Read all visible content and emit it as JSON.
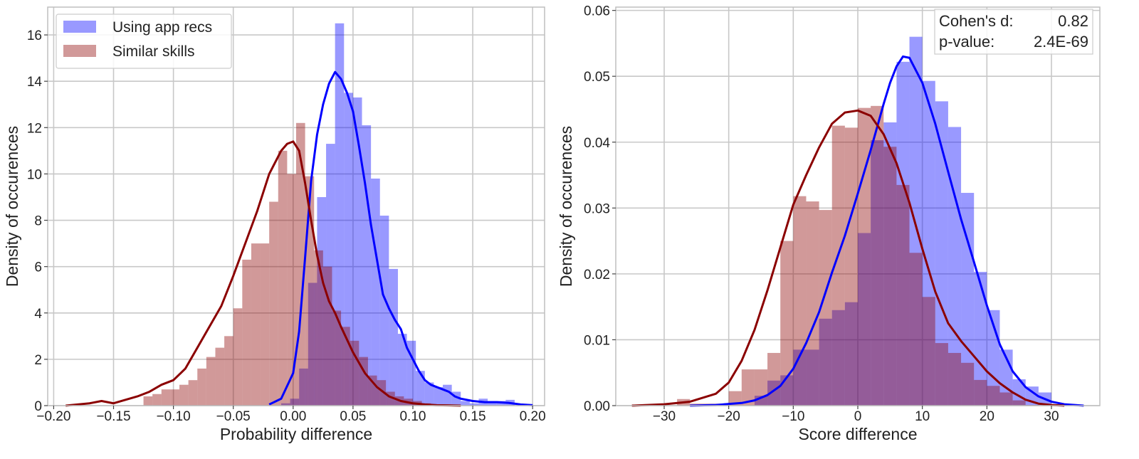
{
  "chart_data": [
    {
      "type": "histogram+kde",
      "xlabel": "Probability difference",
      "ylabel": "Density of occurences",
      "xlim": [
        -0.205,
        0.21
      ],
      "ylim": [
        0,
        17.2
      ],
      "xticks": [
        -0.2,
        -0.15,
        -0.1,
        -0.05,
        0.0,
        0.05,
        0.1,
        0.15,
        0.2
      ],
      "xtick_labels": [
        "−0.20",
        "−0.15",
        "−0.10",
        "−0.05",
        "0.00",
        "0.05",
        "0.10",
        "0.15",
        "0.20"
      ],
      "yticks": [
        0,
        2,
        4,
        6,
        8,
        10,
        12,
        14,
        16
      ],
      "ytick_labels": [
        "0",
        "2",
        "4",
        "6",
        "8",
        "10",
        "12",
        "14",
        "16"
      ],
      "grid": true,
      "legend": {
        "position": "top-left",
        "entries": [
          "Using app recs",
          "Similar skills"
        ]
      },
      "series": [
        {
          "name": "Using app recs",
          "color": "#0000ff",
          "hist_alpha": 0.4,
          "bin_width": 0.0075,
          "bins": [
            [
              -0.01,
              0.1
            ],
            [
              -0.0025,
              0.3
            ],
            [
              0.005,
              1.6
            ],
            [
              0.0125,
              5.3
            ],
            [
              0.02,
              9.0
            ],
            [
              0.0275,
              11.3
            ],
            [
              0.035,
              16.5
            ],
            [
              0.0425,
              13.5
            ],
            [
              0.05,
              13.3
            ],
            [
              0.0575,
              12.1
            ],
            [
              0.065,
              9.8
            ],
            [
              0.0725,
              8.2
            ],
            [
              0.08,
              5.9
            ],
            [
              0.0875,
              3.1
            ],
            [
              0.095,
              2.8
            ],
            [
              0.1025,
              1.5
            ],
            [
              0.11,
              1.0
            ],
            [
              0.1175,
              0.8
            ],
            [
              0.125,
              0.9
            ],
            [
              0.1325,
              0.6
            ],
            [
              0.14,
              0.2
            ],
            [
              0.1475,
              0.1
            ],
            [
              0.155,
              0.3
            ],
            [
              0.1625,
              0.2
            ],
            [
              0.17,
              0.2
            ],
            [
              0.1775,
              0.25
            ]
          ],
          "kde_x": [
            -0.02,
            -0.01,
            0.0,
            0.005,
            0.01,
            0.015,
            0.02,
            0.025,
            0.03,
            0.035,
            0.04,
            0.045,
            0.05,
            0.055,
            0.06,
            0.065,
            0.07,
            0.075,
            0.08,
            0.085,
            0.09,
            0.095,
            0.1,
            0.105,
            0.11,
            0.115,
            0.12,
            0.125,
            0.13,
            0.135,
            0.14,
            0.15,
            0.16,
            0.17,
            0.18,
            0.19,
            0.2
          ],
          "kde_y": [
            0.05,
            0.3,
            1.4,
            3.2,
            6.4,
            9.7,
            11.7,
            13.0,
            13.9,
            14.4,
            14.1,
            13.5,
            12.7,
            11.2,
            9.6,
            7.8,
            6.3,
            4.8,
            4.2,
            3.7,
            3.3,
            2.5,
            2.0,
            1.5,
            1.1,
            0.9,
            0.8,
            0.7,
            0.6,
            0.4,
            0.3,
            0.2,
            0.15,
            0.15,
            0.12,
            0.05,
            0.02
          ]
        },
        {
          "name": "Similar skills",
          "color": "#8b0000",
          "hist_alpha": 0.4,
          "bin_width": 0.0075,
          "bins": [
            [
              -0.125,
              0.4
            ],
            [
              -0.1175,
              0.5
            ],
            [
              -0.11,
              0.7
            ],
            [
              -0.1025,
              0.7
            ],
            [
              -0.095,
              0.9
            ],
            [
              -0.0875,
              1.1
            ],
            [
              -0.08,
              1.6
            ],
            [
              -0.0725,
              2.1
            ],
            [
              -0.065,
              2.5
            ],
            [
              -0.0575,
              3.0
            ],
            [
              -0.05,
              4.2
            ],
            [
              -0.0425,
              6.3
            ],
            [
              -0.035,
              7.0
            ],
            [
              -0.0275,
              7.0
            ],
            [
              -0.02,
              8.8
            ],
            [
              -0.0125,
              11.0
            ],
            [
              -0.005,
              10.0
            ],
            [
              0.0025,
              12.2
            ],
            [
              0.01,
              9.9
            ],
            [
              0.0175,
              6.7
            ],
            [
              0.025,
              6.0
            ],
            [
              0.0325,
              4.1
            ],
            [
              0.04,
              3.4
            ],
            [
              0.0475,
              2.8
            ],
            [
              0.055,
              2.1
            ],
            [
              0.0625,
              1.3
            ],
            [
              0.07,
              1.1
            ],
            [
              0.0775,
              0.6
            ],
            [
              0.085,
              0.4
            ],
            [
              0.0925,
              0.3
            ],
            [
              0.1,
              0.2
            ],
            [
              0.1075,
              0.1
            ],
            [
              0.115,
              0.05
            ]
          ],
          "kde_x": [
            -0.19,
            -0.17,
            -0.16,
            -0.15,
            -0.13,
            -0.12,
            -0.11,
            -0.1,
            -0.09,
            -0.08,
            -0.07,
            -0.06,
            -0.05,
            -0.04,
            -0.03,
            -0.02,
            -0.01,
            -0.005,
            0.0,
            0.005,
            0.01,
            0.015,
            0.02,
            0.025,
            0.03,
            0.035,
            0.04,
            0.05,
            0.06,
            0.07,
            0.08,
            0.09,
            0.1,
            0.11,
            0.12,
            0.13,
            0.14
          ],
          "kde_y": [
            0.0,
            0.1,
            0.2,
            0.1,
            0.4,
            0.6,
            0.9,
            1.1,
            1.6,
            2.5,
            3.4,
            4.3,
            5.6,
            7.0,
            8.4,
            10.0,
            11.0,
            11.3,
            11.4,
            11.0,
            9.6,
            8.0,
            6.5,
            5.3,
            4.5,
            4.0,
            3.4,
            2.3,
            1.4,
            0.8,
            0.4,
            0.2,
            0.1,
            0.05,
            0.02,
            0.01,
            0.0
          ]
        }
      ]
    },
    {
      "type": "histogram+kde",
      "xlabel": "Score difference",
      "ylabel": "Density of occurences",
      "xlim": [
        -37.5,
        37.5
      ],
      "ylim": [
        0,
        0.0605
      ],
      "xticks": [
        -30,
        -20,
        -10,
        0,
        10,
        20,
        30
      ],
      "xtick_labels": [
        "−30",
        "−20",
        "−10",
        "0",
        "10",
        "20",
        "30"
      ],
      "yticks": [
        0,
        0.01,
        0.02,
        0.03,
        0.04,
        0.05,
        0.06
      ],
      "ytick_labels": [
        "0.00",
        "0.01",
        "0.02",
        "0.03",
        "0.04",
        "0.05",
        "0.06"
      ],
      "grid": true,
      "annotation": {
        "position": "top-right",
        "lines": [
          {
            "label": "Cohen's d:",
            "value": "0.82"
          },
          {
            "label": "p-value:",
            "value": "2.4E-69"
          }
        ]
      },
      "series": [
        {
          "name": "Using app recs",
          "color": "#0000ff",
          "hist_alpha": 0.4,
          "bin_width": 2.0,
          "bins": [
            [
              -16,
              0.0015
            ],
            [
              -14,
              0.0038
            ],
            [
              -12,
              0.0046
            ],
            [
              -10,
              0.0085
            ],
            [
              -8,
              0.0085
            ],
            [
              -6,
              0.0132
            ],
            [
              -4,
              0.0145
            ],
            [
              -2,
              0.0157
            ],
            [
              0,
              0.0262
            ],
            [
              2,
              0.0403
            ],
            [
              4,
              0.043
            ],
            [
              6,
              0.0522
            ],
            [
              8,
              0.056
            ],
            [
              10,
              0.0493
            ],
            [
              12,
              0.0462
            ],
            [
              14,
              0.0423
            ],
            [
              16,
              0.0323
            ],
            [
              18,
              0.0203
            ],
            [
              20,
              0.0145
            ],
            [
              22,
              0.0085
            ],
            [
              24,
              0.004
            ],
            [
              26,
              0.0029
            ],
            [
              28,
              0.002
            ]
          ],
          "kde_x": [
            -26,
            -22,
            -18,
            -16,
            -14,
            -12,
            -10,
            -8,
            -6,
            -4,
            -2,
            0,
            2,
            4,
            5,
            6,
            7,
            8,
            10,
            12,
            14,
            16,
            18,
            20,
            22,
            24,
            26,
            28,
            30,
            32,
            35
          ],
          "kde_y": [
            0.0,
            0.0001,
            0.0004,
            0.0008,
            0.0016,
            0.003,
            0.0056,
            0.0095,
            0.0142,
            0.0202,
            0.0258,
            0.0322,
            0.0388,
            0.0458,
            0.049,
            0.0515,
            0.053,
            0.0528,
            0.049,
            0.0428,
            0.0355,
            0.0283,
            0.0218,
            0.0152,
            0.0093,
            0.0052,
            0.0028,
            0.0014,
            0.0006,
            0.0002,
            0.0
          ]
        },
        {
          "name": "Similar skills",
          "color": "#8b0000",
          "hist_alpha": 0.4,
          "bin_width": 2.0,
          "bins": [
            [
              -28,
              0.001
            ],
            [
              -26,
              0.0003
            ],
            [
              -24,
              0.0003
            ],
            [
              -22,
              0.0003
            ],
            [
              -20,
              0.0022
            ],
            [
              -18,
              0.0055
            ],
            [
              -16,
              0.0055
            ],
            [
              -14,
              0.008
            ],
            [
              -12,
              0.025
            ],
            [
              -10,
              0.0318
            ],
            [
              -8,
              0.031
            ],
            [
              -6,
              0.0297
            ],
            [
              -4,
              0.0425
            ],
            [
              -2,
              0.0422
            ],
            [
              0,
              0.0452
            ],
            [
              2,
              0.0455
            ],
            [
              4,
              0.0393
            ],
            [
              6,
              0.0335
            ],
            [
              8,
              0.0232
            ],
            [
              10,
              0.0165
            ],
            [
              12,
              0.0095
            ],
            [
              14,
              0.008
            ],
            [
              16,
              0.0065
            ],
            [
              18,
              0.0039
            ],
            [
              20,
              0.003
            ],
            [
              22,
              0.002
            ],
            [
              24,
              0.0008
            ],
            [
              26,
              0.0001
            ]
          ],
          "kde_x": [
            -35,
            -30,
            -26,
            -22,
            -20,
            -18,
            -16,
            -14,
            -12,
            -10,
            -8,
            -6,
            -4,
            -2,
            0,
            2,
            4,
            6,
            8,
            10,
            12,
            14,
            16,
            18,
            20,
            22,
            24,
            26,
            28,
            30,
            32
          ],
          "kde_y": [
            0.0,
            0.0002,
            0.0006,
            0.0018,
            0.0035,
            0.0068,
            0.0115,
            0.0175,
            0.024,
            0.0305,
            0.035,
            0.0392,
            0.0428,
            0.0445,
            0.0448,
            0.044,
            0.0412,
            0.0368,
            0.0308,
            0.0238,
            0.0173,
            0.0125,
            0.0098,
            0.0075,
            0.0052,
            0.0034,
            0.002,
            0.0009,
            0.0003,
            0.0001,
            0.0
          ]
        }
      ]
    }
  ]
}
